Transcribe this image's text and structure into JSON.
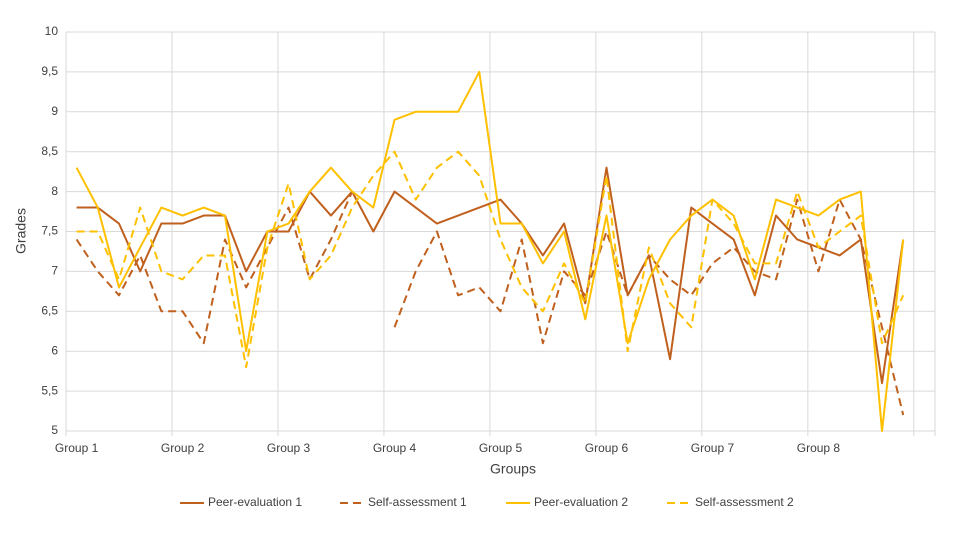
{
  "chart_data": {
    "type": "line",
    "x_label": "Groups",
    "y_label": "Grades",
    "categories": [
      "Group 1",
      null,
      null,
      null,
      null,
      "Group 2",
      null,
      null,
      null,
      null,
      "Group 3",
      null,
      null,
      null,
      null,
      "Group 4",
      null,
      null,
      null,
      null,
      "Group 5",
      null,
      null,
      null,
      null,
      "Group 6",
      null,
      null,
      null,
      null,
      "Group 7",
      null,
      null,
      null,
      null,
      "Group 8",
      null,
      null,
      null,
      null,
      null
    ],
    "series": [
      {
        "name": "Peer-evaluation 1",
        "color": "#c0601e",
        "dashed": false,
        "values": [
          7.8,
          7.8,
          7.6,
          7.0,
          7.6,
          7.6,
          7.7,
          7.7,
          7.0,
          7.5,
          7.5,
          8.0,
          7.7,
          8.0,
          7.5,
          8.0,
          7.8,
          7.6,
          7.7,
          7.8,
          7.9,
          7.6,
          7.2,
          7.6,
          6.6,
          8.3,
          6.7,
          7.2,
          5.9,
          7.8,
          7.6,
          7.4,
          6.7,
          7.7,
          7.4,
          7.3,
          7.2,
          7.4,
          5.6,
          7.4,
          null
        ]
      },
      {
        "name": "Self-assessment 1",
        "color": "#c0601e",
        "dashed": true,
        "values": [
          7.4,
          7.0,
          6.7,
          7.2,
          6.5,
          6.5,
          6.1,
          7.4,
          6.8,
          7.3,
          7.8,
          6.9,
          7.4,
          8.0,
          null,
          6.3,
          7.0,
          7.5,
          6.7,
          6.8,
          6.5,
          7.4,
          6.1,
          7.0,
          6.7,
          7.5,
          6.7,
          7.2,
          6.9,
          6.7,
          7.1,
          7.3,
          7.0,
          6.9,
          7.9,
          7.0,
          7.9,
          7.4,
          6.3,
          5.2,
          null
        ]
      },
      {
        "name": "Peer-evaluation 2",
        "color": "#ffc000",
        "dashed": false,
        "values": [
          8.3,
          7.8,
          6.8,
          7.3,
          7.8,
          7.7,
          7.8,
          7.7,
          6.0,
          7.5,
          7.6,
          8.0,
          8.3,
          8.0,
          7.8,
          8.9,
          9.0,
          9.0,
          9.0,
          9.5,
          7.6,
          7.6,
          7.1,
          7.5,
          6.4,
          7.7,
          6.1,
          6.9,
          7.4,
          7.7,
          7.9,
          7.7,
          6.9,
          7.9,
          7.8,
          7.7,
          7.9,
          8.0,
          5.0,
          7.4,
          null
        ]
      },
      {
        "name": "Self-assessment 2",
        "color": "#ffc000",
        "dashed": true,
        "values": [
          7.5,
          7.5,
          6.9,
          7.8,
          7.0,
          6.9,
          7.2,
          7.2,
          5.8,
          7.3,
          8.1,
          6.9,
          7.2,
          7.8,
          8.2,
          8.5,
          7.9,
          8.3,
          8.5,
          8.2,
          7.4,
          6.8,
          6.5,
          7.1,
          6.6,
          8.2,
          6.0,
          7.3,
          6.6,
          6.3,
          7.9,
          7.6,
          7.1,
          7.1,
          8.0,
          7.3,
          7.5,
          7.7,
          6.1,
          6.7,
          null
        ]
      }
    ],
    "ylim": [
      5,
      10
    ],
    "yticks": [
      5,
      {
        "value": 5.5,
        "label": "5,5"
      },
      6,
      {
        "value": 6.5,
        "label": "6,5"
      },
      7,
      {
        "value": 7.5,
        "label": "7,5"
      },
      8,
      {
        "value": 8.5,
        "label": "8,5"
      },
      9,
      {
        "value": 9.5,
        "label": "9,5"
      },
      10
    ],
    "grid": true,
    "legend": "bottom"
  }
}
